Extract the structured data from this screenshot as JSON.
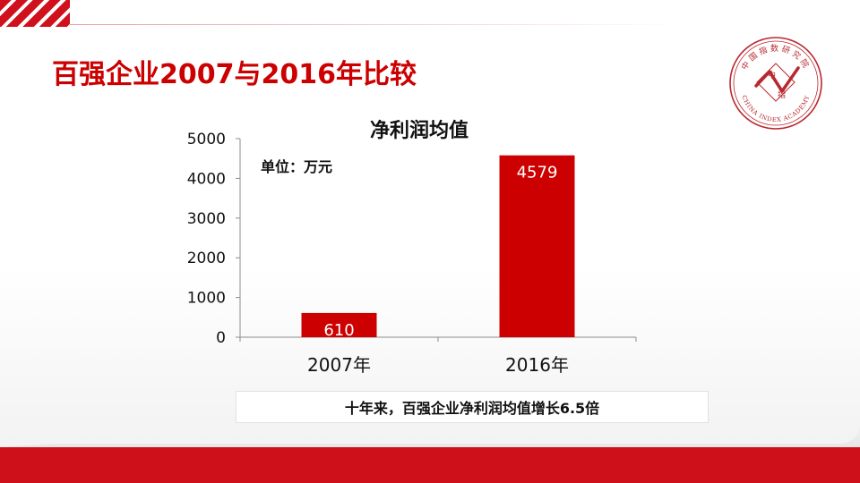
{
  "slide": {
    "title": "百强企业2007与2016年比较",
    "unit": "单位：万元",
    "summary": "十年来，百强企业净利润均值增长6.5倍"
  },
  "logo": {
    "top_text": "中国指数研究院",
    "bottom_text": "CHINA INDEX ACADEMY",
    "center_chars": [
      "中",
      "指"
    ]
  },
  "colors": {
    "accent": "#cc0000",
    "bar": "#cc0000"
  },
  "chart_data": {
    "type": "bar",
    "title": "净利润均值",
    "categories": [
      "2007年",
      "2016年"
    ],
    "values": [
      610,
      4579
    ],
    "data_labels": [
      "610",
      "4579"
    ],
    "ylim": [
      0,
      5000
    ],
    "yticks": [
      0,
      1000,
      2000,
      3000,
      4000,
      5000
    ],
    "ytick_labels": [
      "0",
      "1000",
      "2000",
      "3000",
      "4000",
      "5000"
    ],
    "xlabel": "",
    "ylabel": "",
    "grid": false,
    "legend": "none"
  }
}
